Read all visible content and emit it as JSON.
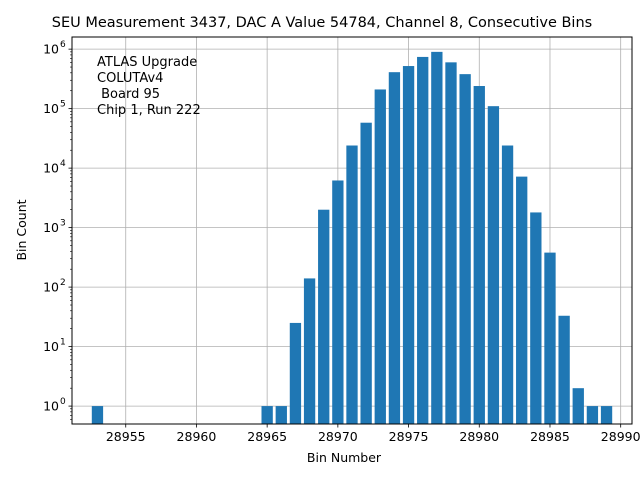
{
  "chart_data": {
    "type": "bar",
    "title": "SEU Measurement 3437, DAC A Value 54784, Channel 8, Consecutive Bins",
    "xlabel": "Bin Number",
    "ylabel": "Bin Count",
    "yscale": "log",
    "xlim": [
      28951.2,
      28990.8
    ],
    "ylim": [
      0.5,
      1600000
    ],
    "grid": true,
    "bar_color": "#1f77b4",
    "xticks": [
      28955,
      28960,
      28965,
      28970,
      28975,
      28980,
      28985,
      28990
    ],
    "yticks": [
      {
        "value": 1,
        "base": "10",
        "exp": "0"
      },
      {
        "value": 10,
        "base": "10",
        "exp": "1"
      },
      {
        "value": 100,
        "base": "10",
        "exp": "2"
      },
      {
        "value": 1000,
        "base": "10",
        "exp": "3"
      },
      {
        "value": 10000,
        "base": "10",
        "exp": "4"
      },
      {
        "value": 100000,
        "base": "10",
        "exp": "5"
      },
      {
        "value": 1000000,
        "base": "10",
        "exp": "6"
      }
    ],
    "annotation": [
      "ATLAS Upgrade",
      "COLUTAv4",
      " Board 95",
      "Chip 1, Run 222"
    ],
    "annotation_position": "top-left",
    "bars": [
      {
        "x": 28953,
        "y": 1
      },
      {
        "x": 28965,
        "y": 1
      },
      {
        "x": 28966,
        "y": 1
      },
      {
        "x": 28967,
        "y": 25
      },
      {
        "x": 28968,
        "y": 140
      },
      {
        "x": 28969,
        "y": 2000
      },
      {
        "x": 28970,
        "y": 6200
      },
      {
        "x": 28971,
        "y": 24000
      },
      {
        "x": 28972,
        "y": 58000
      },
      {
        "x": 28973,
        "y": 210000
      },
      {
        "x": 28974,
        "y": 410000
      },
      {
        "x": 28975,
        "y": 520000
      },
      {
        "x": 28976,
        "y": 740000
      },
      {
        "x": 28977,
        "y": 900000
      },
      {
        "x": 28978,
        "y": 600000
      },
      {
        "x": 28979,
        "y": 380000
      },
      {
        "x": 28980,
        "y": 240000
      },
      {
        "x": 28981,
        "y": 110000
      },
      {
        "x": 28982,
        "y": 24000
      },
      {
        "x": 28983,
        "y": 7200
      },
      {
        "x": 28984,
        "y": 1800
      },
      {
        "x": 28985,
        "y": 380
      },
      {
        "x": 28986,
        "y": 33
      },
      {
        "x": 28987,
        "y": 2
      },
      {
        "x": 28988,
        "y": 1
      },
      {
        "x": 28989,
        "y": 1
      }
    ]
  }
}
